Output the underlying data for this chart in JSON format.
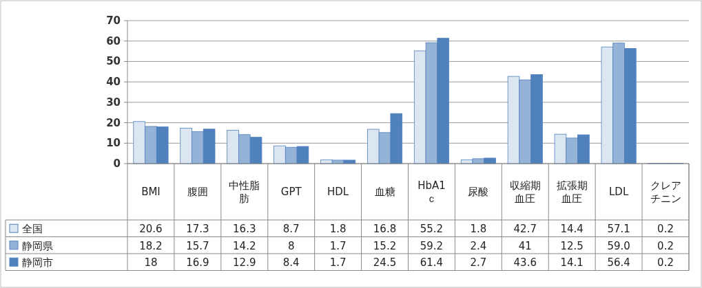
{
  "chart_data": {
    "type": "bar",
    "categories": [
      "BMI",
      "腹囲",
      "中性脂肪",
      "GPT",
      "HDL",
      "血糖",
      "HbA1ｃ",
      "尿酸",
      "収縮期血圧",
      "拡張期血圧",
      "LDL",
      "クレアチニン"
    ],
    "series": [
      {
        "name": "全国",
        "color": "#dce6f2",
        "values": [
          20.6,
          17.3,
          16.3,
          8.7,
          1.8,
          16.8,
          55.2,
          1.8,
          42.7,
          14.4,
          57.1,
          0.2
        ],
        "value_labels": [
          "20.6",
          "17.3",
          "16.3",
          "8.7",
          "1.8",
          "16.8",
          "55.2",
          "1.8",
          "42.7",
          "14.4",
          "57.1",
          "0.2"
        ]
      },
      {
        "name": "静岡県",
        "color": "#95b3d7",
        "values": [
          18.2,
          15.7,
          14.2,
          8,
          1.7,
          15.2,
          59.2,
          2.4,
          41,
          12.5,
          59.0,
          0.2
        ],
        "value_labels": [
          "18.2",
          "15.7",
          "14.2",
          "8",
          "1.7",
          "15.2",
          "59.2",
          "2.4",
          "41",
          "12.5",
          "59.0",
          "0.2"
        ]
      },
      {
        "name": "静岡市",
        "color": "#4f81bd",
        "values": [
          18,
          16.9,
          12.9,
          8.4,
          1.7,
          24.5,
          61.4,
          2.7,
          43.6,
          14.1,
          56.4,
          0.2
        ],
        "value_labels": [
          "18",
          "16.9",
          "12.9",
          "8.4",
          "1.7",
          "24.5",
          "61.4",
          "2.7",
          "43.6",
          "14.1",
          "56.4",
          "0.2"
        ]
      }
    ],
    "ylim": [
      0,
      70
    ],
    "yticks": [
      0,
      10,
      20,
      30,
      40,
      50,
      60,
      70
    ],
    "grid": "y",
    "legend": "bottom left"
  }
}
